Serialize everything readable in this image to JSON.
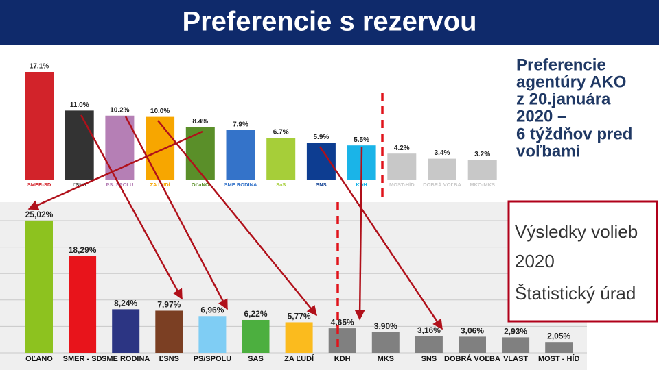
{
  "title": "Preferencie s rezervou",
  "note_lines": [
    "Preferencie",
    "agentúry AKO",
    "z 20.januára",
    "2020 –",
    "6 týždňov pred",
    "voľbami"
  ],
  "box_lines": [
    "Výsledky volieb",
    "2020",
    "Štatistický úrad"
  ],
  "chart_data": [
    {
      "type": "bar",
      "categories": [
        "SMER-SD",
        "ĽSNS",
        "PS. SPOLU",
        "ZA ĽUDÍ",
        "OĽaNO",
        "SME RODINA",
        "SaS",
        "SNS",
        "KDH",
        "MOST-HÍD",
        "DOBRÁ VOĽBA",
        "MKO-MKS"
      ],
      "values": [
        17.1,
        11.0,
        10.2,
        10.0,
        8.4,
        7.9,
        6.7,
        5.9,
        5.5,
        4.2,
        3.4,
        3.2
      ],
      "value_labels": [
        "17.1%",
        "11.0%",
        "10.2%",
        "10.0%",
        "8.4%",
        "7.9%",
        "6.7%",
        "5.9%",
        "5.5%",
        "4.2%",
        "3.4%",
        "3.2%"
      ],
      "colors": [
        "#d2232a",
        "#333333",
        "#b57fb5",
        "#f7a600",
        "#5a8f29",
        "#3473c9",
        "#a6ce39",
        "#0d3d91",
        "#1ab4e8",
        "#c8c8c8",
        "#c8c8c8",
        "#c8c8c8"
      ]
    },
    {
      "type": "bar",
      "categories": [
        "OĽANO",
        "SMER - SD",
        "SME RODINA",
        "ĽSNS",
        "PS/SPOLU",
        "SAS",
        "ZA ĽUDÍ",
        "KDH",
        "MKS",
        "SNS",
        "DOBRÁ VOĽBA",
        "VLAST",
        "MOST - HÍD"
      ],
      "values": [
        25.02,
        18.29,
        8.24,
        7.97,
        6.96,
        6.22,
        5.77,
        4.65,
        3.9,
        3.16,
        3.06,
        2.93,
        2.05
      ],
      "value_labels": [
        "25,02%",
        "18,29%",
        "8,24%",
        "7,97%",
        "6,96%",
        "6,22%",
        "5,77%",
        "4,65%",
        "3,90%",
        "3,16%",
        "3,06%",
        "2,93%",
        "2,05%"
      ],
      "colors": [
        "#8dc21f",
        "#e8141b",
        "#2c3583",
        "#7b3f23",
        "#7fcdf4",
        "#4caf3f",
        "#fbbb1e",
        "#808080",
        "#808080",
        "#808080",
        "#808080",
        "#808080",
        "#808080"
      ],
      "ylim": [
        0,
        25
      ],
      "yticks": [
        0,
        5,
        10,
        15,
        20,
        25
      ],
      "grid": true
    }
  ]
}
